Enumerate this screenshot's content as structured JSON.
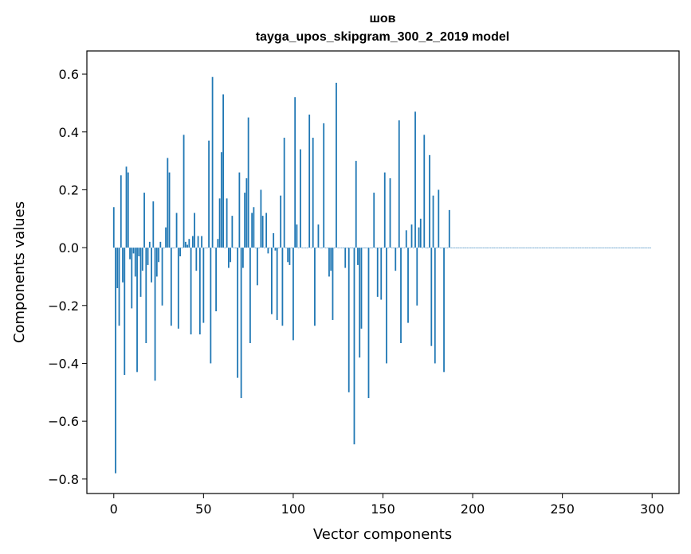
{
  "chart_data": {
    "type": "bar",
    "title_line1": "шов",
    "title_line2": "tayga_upos_skipgram_300_2_2019 model",
    "xlabel": "Vector components",
    "ylabel": "Components values",
    "xlim": [
      -15,
      315
    ],
    "ylim": [
      -0.85,
      0.68
    ],
    "xticks": [
      0,
      50,
      100,
      150,
      200,
      250,
      300
    ],
    "yticks": [
      -0.8,
      -0.6,
      -0.4,
      -0.2,
      0.0,
      0.2,
      0.4,
      0.6
    ],
    "ytick_labels": [
      "−0.8",
      "−0.6",
      "−0.4",
      "−0.2",
      "0.0",
      "0.2",
      "0.4",
      "0.6"
    ],
    "bar_color": "#1f77b4",
    "x": [
      0,
      1,
      2,
      3,
      4,
      5,
      6,
      7,
      8,
      9,
      10,
      11,
      12,
      13,
      14,
      15,
      16,
      17,
      18,
      19,
      20,
      21,
      22,
      23,
      24,
      25,
      26,
      27,
      28,
      29,
      30,
      31,
      32,
      33,
      34,
      35,
      36,
      37,
      38,
      39,
      40,
      41,
      42,
      43,
      44,
      45,
      46,
      47,
      48,
      49,
      50,
      51,
      52,
      53,
      54,
      55,
      56,
      57,
      58,
      59,
      60,
      61,
      62,
      63,
      64,
      65,
      66,
      67,
      68,
      69,
      70,
      71,
      72,
      73,
      74,
      75,
      76,
      77,
      78,
      79,
      80,
      81,
      82,
      83,
      84,
      85,
      86,
      87,
      88,
      89,
      90,
      91,
      92,
      93,
      94,
      95,
      96,
      97,
      98,
      99,
      100,
      101,
      102,
      103,
      104,
      105,
      106,
      107,
      108,
      109,
      110,
      111,
      112,
      113,
      114,
      115,
      116,
      117,
      118,
      119,
      120,
      121,
      122,
      123,
      124,
      125,
      126,
      127,
      128,
      129,
      130,
      131,
      132,
      133,
      134,
      135,
      136,
      137,
      138,
      139,
      140,
      141,
      142,
      143,
      144,
      145,
      146,
      147,
      148,
      149,
      150,
      151,
      152,
      153,
      154,
      155,
      156,
      157,
      158,
      159,
      160,
      161,
      162,
      163,
      164,
      165,
      166,
      167,
      168,
      169,
      170,
      171,
      172,
      173,
      174,
      175,
      176,
      177,
      178,
      179,
      180,
      181,
      182,
      183,
      184,
      185,
      186,
      187,
      188,
      189,
      190,
      191,
      192,
      193,
      194,
      195,
      196,
      197,
      198,
      199,
      200,
      201,
      202,
      203,
      204,
      205,
      206,
      207,
      208,
      209,
      210,
      211,
      212,
      213,
      214,
      215,
      216,
      217,
      218,
      219,
      220,
      221,
      222,
      223,
      224,
      225,
      226,
      227,
      228,
      229,
      230,
      231,
      232,
      233,
      234,
      235,
      236,
      237,
      238,
      239,
      240,
      241,
      242,
      243,
      244,
      245,
      246,
      247,
      248,
      249,
      250,
      251,
      252,
      253,
      254,
      255,
      256,
      257,
      258,
      259,
      260,
      261,
      262,
      263,
      264,
      265,
      266,
      267,
      268,
      269,
      270,
      271,
      272,
      273,
      274,
      275,
      276,
      277,
      278,
      279,
      280,
      281,
      282,
      283,
      284,
      285,
      286,
      287,
      288,
      289,
      290,
      291,
      292,
      293,
      294,
      295,
      296,
      297,
      298,
      299
    ],
    "values": [
      0.14,
      -0.78,
      -0.14,
      -0.27,
      0.25,
      -0.12,
      -0.44,
      0.28,
      0.26,
      -0.04,
      -0.21,
      -0.02,
      -0.1,
      -0.43,
      -0.03,
      -0.17,
      -0.08,
      0.19,
      -0.33,
      -0.06,
      0.02,
      -0.12,
      0.16,
      -0.46,
      -0.1,
      -0.05,
      0.02,
      -0.2,
      0.0,
      0.07,
      0.31,
      0.26,
      -0.27,
      0.0,
      0.0,
      0.12,
      -0.28,
      -0.03,
      0.0,
      0.39,
      0.02,
      0.01,
      0.03,
      -0.3,
      0.04,
      0.12,
      -0.08,
      0.04,
      -0.3,
      0.04,
      -0.26,
      0.0,
      0.0,
      0.37,
      -0.4,
      0.59,
      0.0,
      -0.22,
      0.03,
      0.17,
      0.33,
      0.53,
      0.0,
      0.17,
      -0.07,
      -0.05,
      0.11,
      0.0,
      0.0,
      -0.45,
      0.26,
      -0.52,
      -0.07,
      0.19,
      0.24,
      0.45,
      -0.33,
      0.12,
      0.14,
      0.0,
      -0.13,
      0.0,
      0.2,
      0.11,
      0.0,
      0.12,
      -0.02,
      0.0,
      -0.23,
      0.05,
      -0.01,
      -0.25,
      0.0,
      0.18,
      -0.27,
      0.38,
      0.0,
      -0.05,
      -0.06,
      0.0,
      -0.32,
      0.52,
      0.08,
      0.0,
      0.34,
      0.0,
      0.0,
      0.0,
      0.0,
      0.46,
      0.0,
      0.38,
      -0.27,
      0.0,
      0.08,
      0.0,
      0.0,
      0.43,
      0.0,
      0.0,
      -0.1,
      -0.08,
      -0.25,
      0.0,
      0.57,
      0.0,
      0.0,
      0.0,
      0.0,
      -0.07,
      0.0,
      -0.5,
      0.0,
      0.0,
      -0.68,
      0.3,
      -0.06,
      -0.38,
      -0.28,
      0.0,
      0.0,
      0.0,
      -0.52,
      0.0,
      0.0,
      0.19,
      0.0,
      -0.17,
      0.0,
      -0.18,
      0.0,
      0.26,
      -0.4,
      0.0,
      0.24,
      0.0,
      0.0,
      -0.08,
      0.0,
      0.44,
      -0.33,
      0.0,
      0.0,
      0.06,
      -0.26,
      0.0,
      0.08,
      0.0,
      0.47,
      -0.2,
      0.07,
      0.1,
      0.0,
      0.39,
      0.0,
      0.0,
      0.32,
      -0.34,
      0.18,
      -0.4,
      0.0,
      0.2,
      0.0,
      0.0,
      -0.43,
      0.0,
      0.0,
      0.13,
      0.0,
      0.0,
      0.0,
      0.0,
      0.0,
      0.0,
      0.0,
      0.0,
      0.0,
      0.0,
      0.0,
      0.0,
      0.0,
      0.0,
      0.0,
      0.0,
      0.0,
      0.0,
      0.0,
      0.0,
      0.0,
      0.0,
      0.0,
      0.0,
      0.0,
      0.0,
      0.0,
      0.0,
      0.0,
      0.0,
      0.0,
      0.0,
      0.0,
      0.0,
      0.0,
      0.0,
      0.0,
      0.0,
      0.0,
      0.0,
      0.0,
      0.0,
      0.0,
      0.0,
      0.0,
      0.0,
      0.0,
      0.0,
      0.0,
      0.0,
      0.0,
      0.0,
      0.0,
      0.0,
      0.0,
      0.0,
      0.0,
      0.0,
      0.0,
      0.0,
      0.0,
      0.0,
      0.0,
      0.0,
      0.0,
      0.0,
      0.0,
      0.0,
      0.0,
      0.0,
      0.0,
      0.0,
      0.0,
      0.0,
      0.0,
      0.0,
      0.0,
      0.0,
      0.0,
      0.0,
      0.0,
      0.0,
      0.0,
      0.0,
      0.0,
      0.0,
      0.0,
      0.0,
      0.0,
      0.0,
      0.0,
      0.0,
      0.0,
      0.0,
      0.0,
      0.0,
      0.0,
      0.0,
      0.0,
      0.0,
      0.0,
      0.0,
      0.0,
      0.0,
      0.0,
      0.0,
      0.0,
      0.0,
      0.0,
      0.0,
      0.0,
      0.0
    ]
  }
}
